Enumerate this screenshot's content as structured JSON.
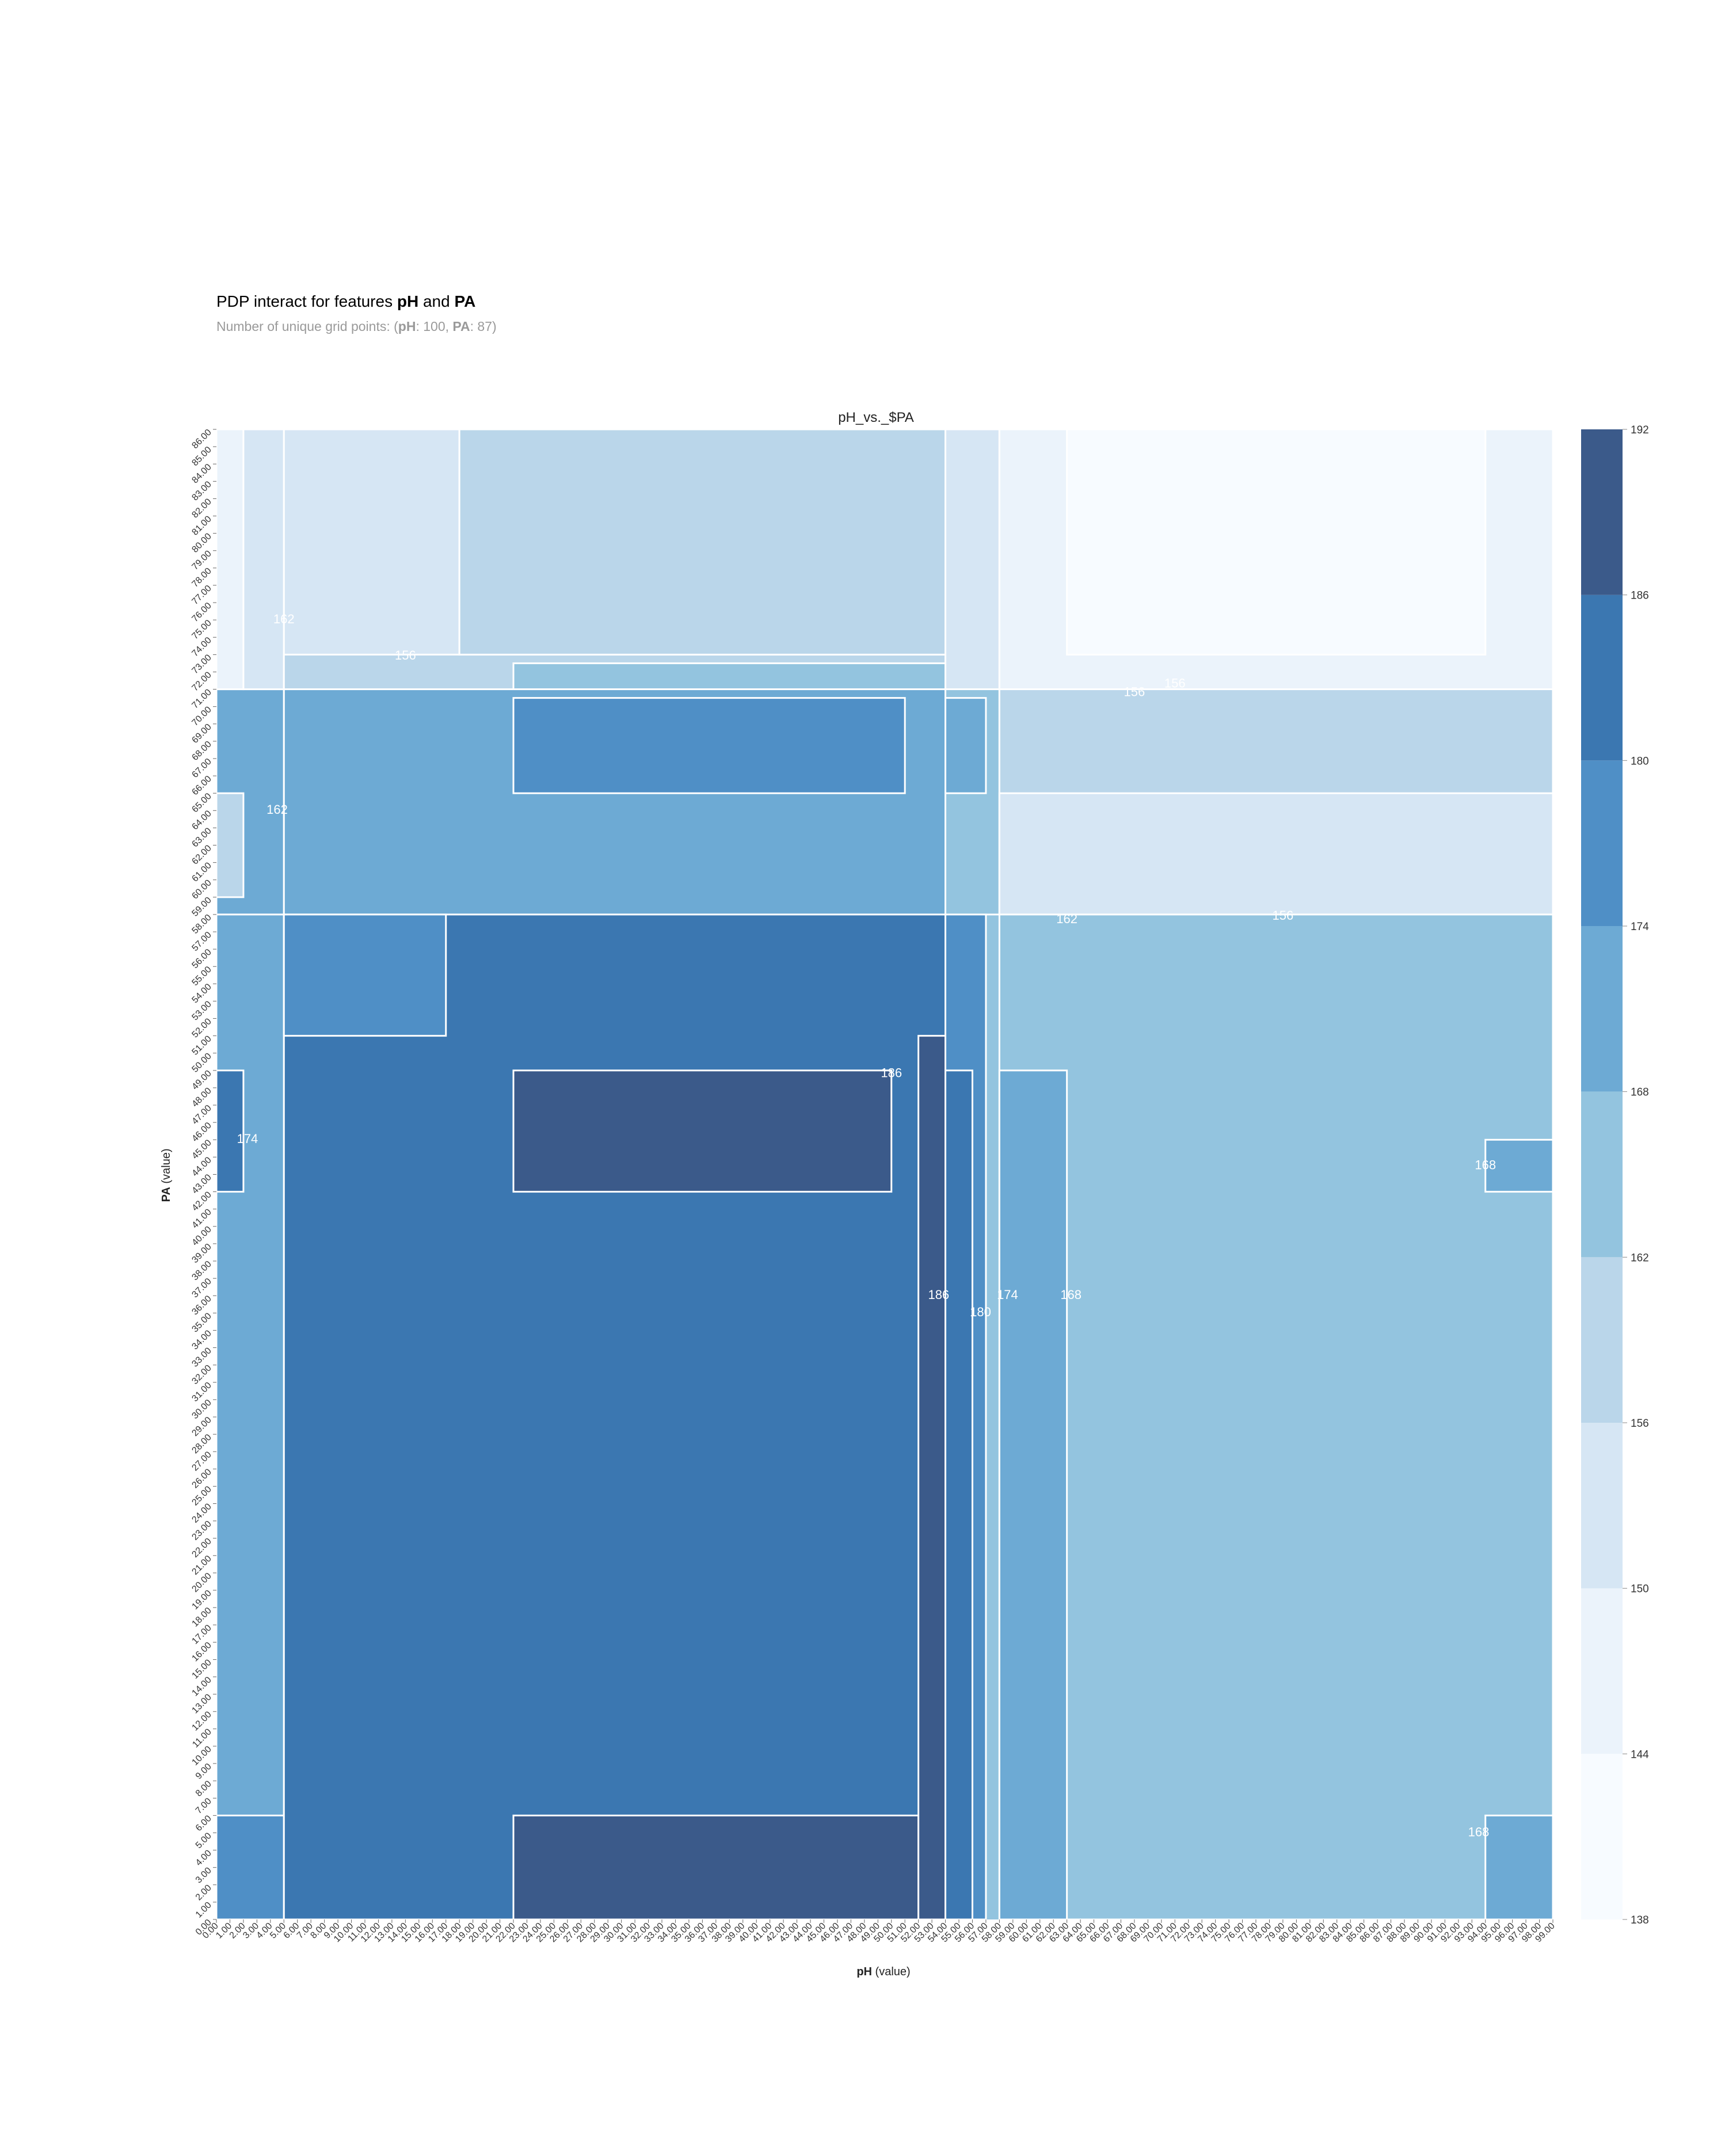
{
  "header": {
    "title_prefix": "PDP interact for features ",
    "feature_x": "pH",
    "title_join": " and ",
    "feature_y": "PA",
    "subtitle_prefix": "Number of unique grid points: (",
    "subtitle_x_name": "pH",
    "subtitle_x_sep": ": ",
    "subtitle_x_count": "100",
    "subtitle_mid": ", ",
    "subtitle_y_name": "PA",
    "subtitle_y_sep": ": ",
    "subtitle_y_count": "87",
    "subtitle_suffix": ")"
  },
  "chart_data": {
    "type": "heatmap",
    "title": "pH_vs._$PA",
    "xlabel_name": "pH",
    "xlabel_suffix": " (value)",
    "ylabel_name": "PA",
    "ylabel_suffix": " (value)",
    "x_ticks": [
      0,
      1,
      2,
      3,
      4,
      5,
      6,
      7,
      8,
      9,
      10,
      11,
      12,
      13,
      14,
      15,
      16,
      17,
      18,
      19,
      20,
      21,
      22,
      23,
      24,
      25,
      26,
      27,
      28,
      29,
      30,
      31,
      32,
      33,
      34,
      35,
      36,
      37,
      38,
      39,
      40,
      41,
      42,
      43,
      44,
      45,
      46,
      47,
      48,
      49,
      50,
      51,
      52,
      53,
      54,
      55,
      56,
      57,
      58,
      59,
      60,
      61,
      62,
      63,
      64,
      65,
      66,
      67,
      68,
      69,
      70,
      71,
      72,
      73,
      74,
      75,
      76,
      77,
      78,
      79,
      80,
      81,
      82,
      83,
      84,
      85,
      86,
      87,
      88,
      89,
      90,
      91,
      92,
      93,
      94,
      95,
      96,
      97,
      98,
      99
    ],
    "y_ticks": [
      0,
      1,
      2,
      3,
      4,
      5,
      6,
      7,
      8,
      9,
      10,
      11,
      12,
      13,
      14,
      15,
      16,
      17,
      18,
      19,
      20,
      21,
      22,
      23,
      24,
      25,
      26,
      27,
      28,
      29,
      30,
      31,
      32,
      33,
      34,
      35,
      36,
      37,
      38,
      39,
      40,
      41,
      42,
      43,
      44,
      45,
      46,
      47,
      48,
      49,
      50,
      51,
      52,
      53,
      54,
      55,
      56,
      57,
      58,
      59,
      60,
      61,
      62,
      63,
      64,
      65,
      66,
      67,
      68,
      69,
      70,
      71,
      72,
      73,
      74,
      75,
      76,
      77,
      78,
      79,
      80,
      81,
      82,
      83,
      84,
      85,
      86
    ],
    "tick_format": "0.00",
    "xlim": [
      0,
      99
    ],
    "ylim": [
      0,
      86
    ],
    "colorbar_levels": [
      138,
      144,
      150,
      156,
      162,
      168,
      174,
      180,
      186,
      192
    ],
    "colorbar_colors": [
      "#f7fbff",
      "#ebf3fb",
      "#d6e6f4",
      "#bad6ea",
      "#93c4df",
      "#6daad4",
      "#4f8fc6",
      "#3b77b1",
      "#3b5a8a"
    ],
    "regions": [
      {
        "x": [
          0,
          99
        ],
        "y": [
          0,
          86
        ],
        "value": 165
      },
      {
        "x": [
          0,
          5
        ],
        "y": [
          58,
          71
        ],
        "value": 171
      },
      {
        "x": [
          0,
          2
        ],
        "y": [
          59,
          65
        ],
        "value": 159
      },
      {
        "x": [
          0,
          2
        ],
        "y": [
          71,
          86
        ],
        "value": 147
      },
      {
        "x": [
          2,
          5
        ],
        "y": [
          71,
          86
        ],
        "value": 153
      },
      {
        "x": [
          5,
          18
        ],
        "y": [
          71,
          86
        ],
        "value": 153
      },
      {
        "x": [
          5,
          54
        ],
        "y": [
          71,
          73
        ],
        "value": 159
      },
      {
        "x": [
          18,
          54
        ],
        "y": [
          73,
          86
        ],
        "value": 159
      },
      {
        "x": [
          22,
          54
        ],
        "y": [
          71,
          72.5
        ],
        "value": 165
      },
      {
        "x": [
          54,
          58
        ],
        "y": [
          71,
          86
        ],
        "value": 153
      },
      {
        "x": [
          58,
          99
        ],
        "y": [
          71,
          86
        ],
        "value": 147
      },
      {
        "x": [
          63,
          94
        ],
        "y": [
          73,
          86
        ],
        "value": 141
      },
      {
        "x": [
          5,
          54
        ],
        "y": [
          58,
          71
        ],
        "value": 171
      },
      {
        "x": [
          22,
          51
        ],
        "y": [
          65,
          70.5
        ],
        "value": 177
      },
      {
        "x": [
          54,
          58
        ],
        "y": [
          58,
          71
        ],
        "value": 165
      },
      {
        "x": [
          54,
          57
        ],
        "y": [
          65,
          70.5
        ],
        "value": 171
      },
      {
        "x": [
          58,
          99
        ],
        "y": [
          58,
          71
        ],
        "value": 159
      },
      {
        "x": [
          58,
          99
        ],
        "y": [
          58,
          65
        ],
        "value": 153
      },
      {
        "x": [
          0,
          5
        ],
        "y": [
          0,
          58
        ],
        "value": 171
      },
      {
        "x": [
          0,
          5
        ],
        "y": [
          0,
          6
        ],
        "value": 177
      },
      {
        "x": [
          0,
          2
        ],
        "y": [
          42,
          49
        ],
        "value": 183
      },
      {
        "x": [
          5,
          54
        ],
        "y": [
          0,
          58
        ],
        "value": 183
      },
      {
        "x": [
          5,
          17
        ],
        "y": [
          51,
          58
        ],
        "value": 177
      },
      {
        "x": [
          22,
          50
        ],
        "y": [
          42,
          49
        ],
        "value": 189
      },
      {
        "x": [
          22,
          52
        ],
        "y": [
          0,
          6
        ],
        "value": 189
      },
      {
        "x": [
          52,
          54
        ],
        "y": [
          0,
          51
        ],
        "value": 189
      },
      {
        "x": [
          54,
          57
        ],
        "y": [
          0,
          58
        ],
        "value": 177
      },
      {
        "x": [
          54,
          56
        ],
        "y": [
          0,
          49
        ],
        "value": 183
      },
      {
        "x": [
          58,
          99
        ],
        "y": [
          0,
          58
        ],
        "value": 165
      },
      {
        "x": [
          58,
          63
        ],
        "y": [
          0,
          49
        ],
        "value": 171
      },
      {
        "x": [
          94,
          99
        ],
        "y": [
          42,
          45
        ],
        "value": 171
      },
      {
        "x": [
          94,
          99
        ],
        "y": [
          0,
          6
        ],
        "value": 171
      }
    ],
    "contour_labels": [
      {
        "text": "156",
        "x": 14,
        "y": 72.9
      },
      {
        "text": "156",
        "x": 68,
        "y": 70.8
      },
      {
        "text": "156",
        "x": 71,
        "y": 71.3
      },
      {
        "text": "156",
        "x": 79,
        "y": 57.9
      },
      {
        "text": "162",
        "x": 63,
        "y": 57.7
      },
      {
        "text": "162",
        "x": 4.5,
        "y": 64
      },
      {
        "text": "162",
        "x": 5,
        "y": 75
      },
      {
        "text": "174",
        "x": 2.3,
        "y": 45
      },
      {
        "text": "186",
        "x": 50,
        "y": 48.8
      },
      {
        "text": "186",
        "x": 53.5,
        "y": 36
      },
      {
        "text": "180",
        "x": 56.6,
        "y": 35
      },
      {
        "text": "174",
        "x": 58.6,
        "y": 36
      },
      {
        "text": "168",
        "x": 63.3,
        "y": 36
      },
      {
        "text": "168",
        "x": 94,
        "y": 43.5
      },
      {
        "text": "168",
        "x": 93.5,
        "y": 5
      }
    ]
  }
}
